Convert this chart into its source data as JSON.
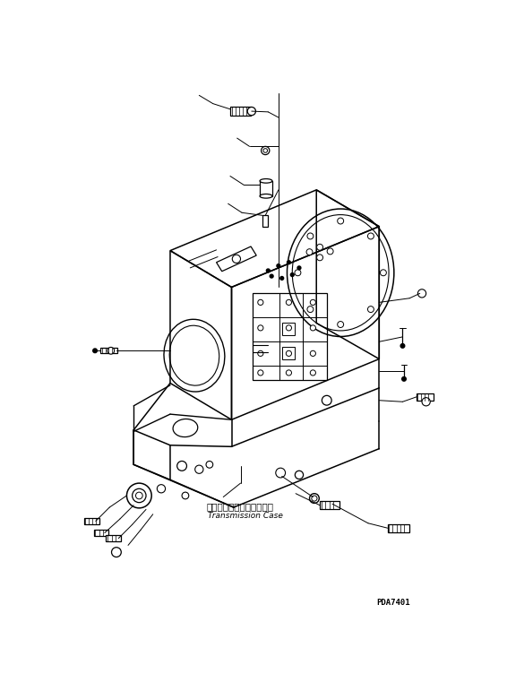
{
  "bg_color": "#ffffff",
  "line_color": "#000000",
  "part_label_jp": "トランスミッションケース",
  "part_label_en": "Transmission Case",
  "diagram_id": "PDA7401",
  "fig_width": 5.66,
  "fig_height": 7.71,
  "dpi": 100
}
